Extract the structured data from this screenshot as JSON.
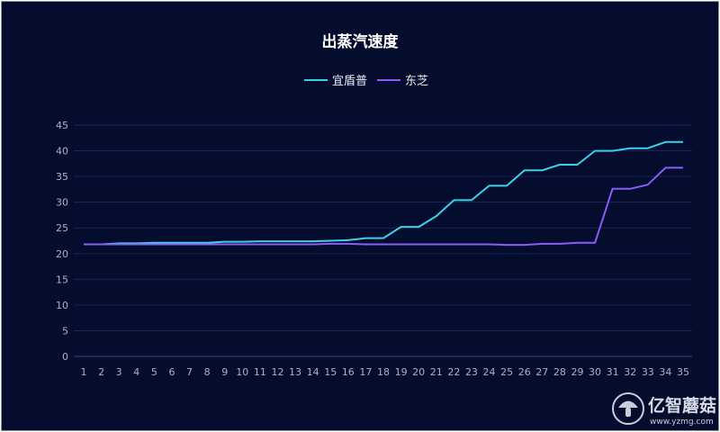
{
  "colors": {
    "background": "#050d2e",
    "grid": "#1b2550",
    "tick": "#aab2c8",
    "title": "#ffffff"
  },
  "chart_data": {
    "type": "line",
    "title": "出蒸汽速度",
    "xlabel": "",
    "ylabel": "",
    "x": [
      1,
      2,
      3,
      4,
      5,
      6,
      7,
      8,
      9,
      10,
      11,
      12,
      13,
      14,
      15,
      16,
      17,
      18,
      19,
      20,
      21,
      22,
      23,
      24,
      25,
      26,
      27,
      28,
      29,
      30,
      31,
      32,
      33,
      34,
      35
    ],
    "ylim": [
      0,
      45
    ],
    "yticks": [
      0,
      5,
      10,
      15,
      20,
      25,
      30,
      35,
      40,
      45
    ],
    "grid": true,
    "legend_position": "top-center",
    "series": [
      {
        "name": "宜盾普",
        "color": "#3fd0e8",
        "values": [
          21.8,
          21.8,
          22.0,
          22.0,
          22.1,
          22.1,
          22.1,
          22.1,
          22.3,
          22.3,
          22.4,
          22.4,
          22.4,
          22.4,
          22.5,
          22.6,
          23.0,
          23.0,
          25.2,
          25.2,
          27.3,
          30.4,
          30.4,
          33.2,
          33.2,
          36.2,
          36.2,
          37.3,
          37.3,
          40.0,
          40.0,
          40.5,
          40.5,
          41.7,
          41.7
        ]
      },
      {
        "name": "东芝",
        "color": "#8a5cf5",
        "values": [
          21.8,
          21.8,
          21.8,
          21.8,
          21.8,
          21.8,
          21.8,
          21.8,
          21.8,
          21.8,
          21.8,
          21.8,
          21.8,
          21.8,
          21.9,
          21.9,
          21.8,
          21.8,
          21.8,
          21.8,
          21.8,
          21.8,
          21.8,
          21.8,
          21.7,
          21.7,
          21.9,
          21.9,
          22.1,
          22.1,
          32.6,
          32.6,
          33.4,
          36.7,
          36.7
        ]
      }
    ]
  },
  "watermark": {
    "brand": "亿智蘑菇",
    "url": "www.yzmg.com"
  }
}
